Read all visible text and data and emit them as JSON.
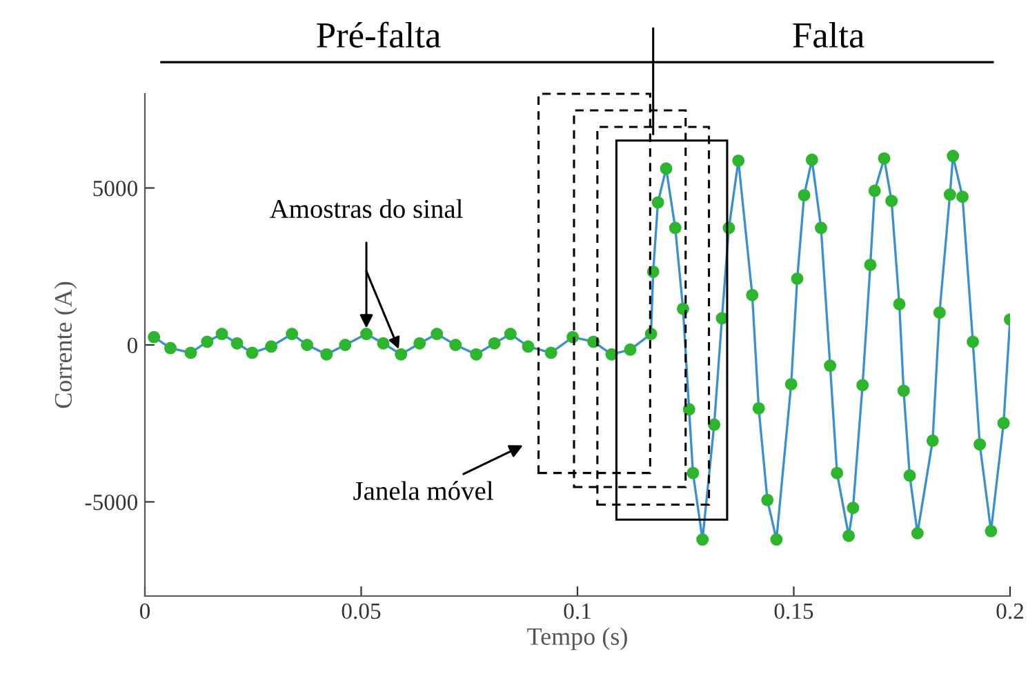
{
  "chart_data": {
    "type": "line",
    "xlabel": "Tempo (s)",
    "ylabel": "Corrente (A)",
    "xlim": [
      0,
      0.2
    ],
    "xticks": [
      0,
      0.05,
      0.1,
      0.15,
      0.2
    ],
    "ylim": [
      -8000,
      8000
    ],
    "yticks": [
      -5000,
      0,
      5000
    ],
    "grid": false,
    "series": [
      {
        "color": "#3a8fd0",
        "marker": "none",
        "x": [
          0.0021,
          0.0059,
          0.0106,
          0.0144,
          0.0178,
          0.0213,
          0.0248,
          0.0292,
          0.034,
          0.0375,
          0.042,
          0.0463,
          0.0512,
          0.0551,
          0.0592,
          0.0635,
          0.0675,
          0.0718,
          0.0766,
          0.0808,
          0.0845,
          0.0886,
          0.0939,
          0.0989,
          0.1037,
          0.1079,
          0.1122,
          0.117,
          0.1175,
          0.1186,
          0.1205,
          0.1226,
          0.1244,
          0.1258,
          0.1267,
          0.1289,
          0.1316,
          0.1334,
          0.135,
          0.1372,
          0.1404,
          0.1419,
          0.1439,
          0.146,
          0.1494,
          0.1508,
          0.1524,
          0.1542,
          0.1563,
          0.1584,
          0.16,
          0.1627,
          0.1637,
          0.1659,
          0.1677,
          0.1687,
          0.1709,
          0.1726,
          0.1744,
          0.1754,
          0.1768,
          0.1786,
          0.1821,
          0.1837,
          0.1861,
          0.1868,
          0.189,
          0.1914,
          0.193,
          0.1956,
          0.1985,
          0.2
        ],
        "values": [
          250,
          -100,
          -250,
          100,
          350,
          50,
          -250,
          -50,
          350,
          0,
          -300,
          0,
          350,
          50,
          -300,
          50,
          350,
          0,
          -300,
          50,
          350,
          -50,
          -250,
          250,
          100,
          -300,
          -150,
          350,
          2330,
          4540,
          5620,
          3730,
          1150,
          -2050,
          -4080,
          -6200,
          -2540,
          850,
          3730,
          5870,
          1590,
          -2020,
          -4940,
          -6200,
          -1250,
          2110,
          4770,
          5900,
          3730,
          -660,
          -4080,
          -6080,
          -5190,
          -1280,
          2550,
          4910,
          5940,
          4590,
          1300,
          -1460,
          -4160,
          -6000,
          -3050,
          1030,
          4790,
          6020,
          4720,
          100,
          -3170,
          -5930,
          -2490,
          810
        ]
      },
      {
        "type": "scatter",
        "color": "#2db52d",
        "marker": "circle",
        "x": [
          0.0021,
          0.0059,
          0.0106,
          0.0144,
          0.0178,
          0.0213,
          0.0248,
          0.0292,
          0.034,
          0.0375,
          0.042,
          0.0463,
          0.0512,
          0.0551,
          0.0592,
          0.0635,
          0.0675,
          0.0718,
          0.0766,
          0.0808,
          0.0845,
          0.0886,
          0.0939,
          0.0989,
          0.1037,
          0.1079,
          0.1122,
          0.117,
          0.1175,
          0.1186,
          0.1205,
          0.1226,
          0.1244,
          0.1258,
          0.1267,
          0.1289,
          0.1316,
          0.1334,
          0.135,
          0.1372,
          0.1404,
          0.1419,
          0.1439,
          0.146,
          0.1494,
          0.1508,
          0.1524,
          0.1542,
          0.1563,
          0.1584,
          0.16,
          0.1627,
          0.1637,
          0.1659,
          0.1677,
          0.1687,
          0.1709,
          0.1726,
          0.1744,
          0.1754,
          0.1768,
          0.1786,
          0.1821,
          0.1837,
          0.1861,
          0.1868,
          0.189,
          0.1914,
          0.193,
          0.1956,
          0.1985,
          0.2
        ],
        "values": [
          250,
          -100,
          -250,
          100,
          350,
          50,
          -250,
          -50,
          350,
          0,
          -300,
          0,
          350,
          50,
          -300,
          50,
          350,
          0,
          -300,
          50,
          350,
          -50,
          -250,
          250,
          100,
          -300,
          -150,
          350,
          2330,
          4540,
          5620,
          3730,
          1150,
          -2050,
          -4080,
          -6200,
          -2540,
          850,
          3730,
          5870,
          1590,
          -2020,
          -4940,
          -6200,
          -1250,
          2110,
          4770,
          5900,
          3730,
          -660,
          -4080,
          -6080,
          -5190,
          -1280,
          2550,
          4910,
          5940,
          4590,
          1300,
          -1460,
          -4160,
          -6000,
          -3050,
          1030,
          4790,
          6020,
          4720,
          100,
          -3170,
          -5930,
          -2490,
          810
        ]
      }
    ],
    "ref_lines": [
      {
        "axis": "x",
        "value": 0.1175,
        "color": "#000000"
      }
    ],
    "annotations": [
      "Pré-falta",
      "Falta",
      {
        "text": "Amostras do sinal",
        "x": 0.0512,
        "y": 350
      },
      "Janela móvel"
    ]
  }
}
